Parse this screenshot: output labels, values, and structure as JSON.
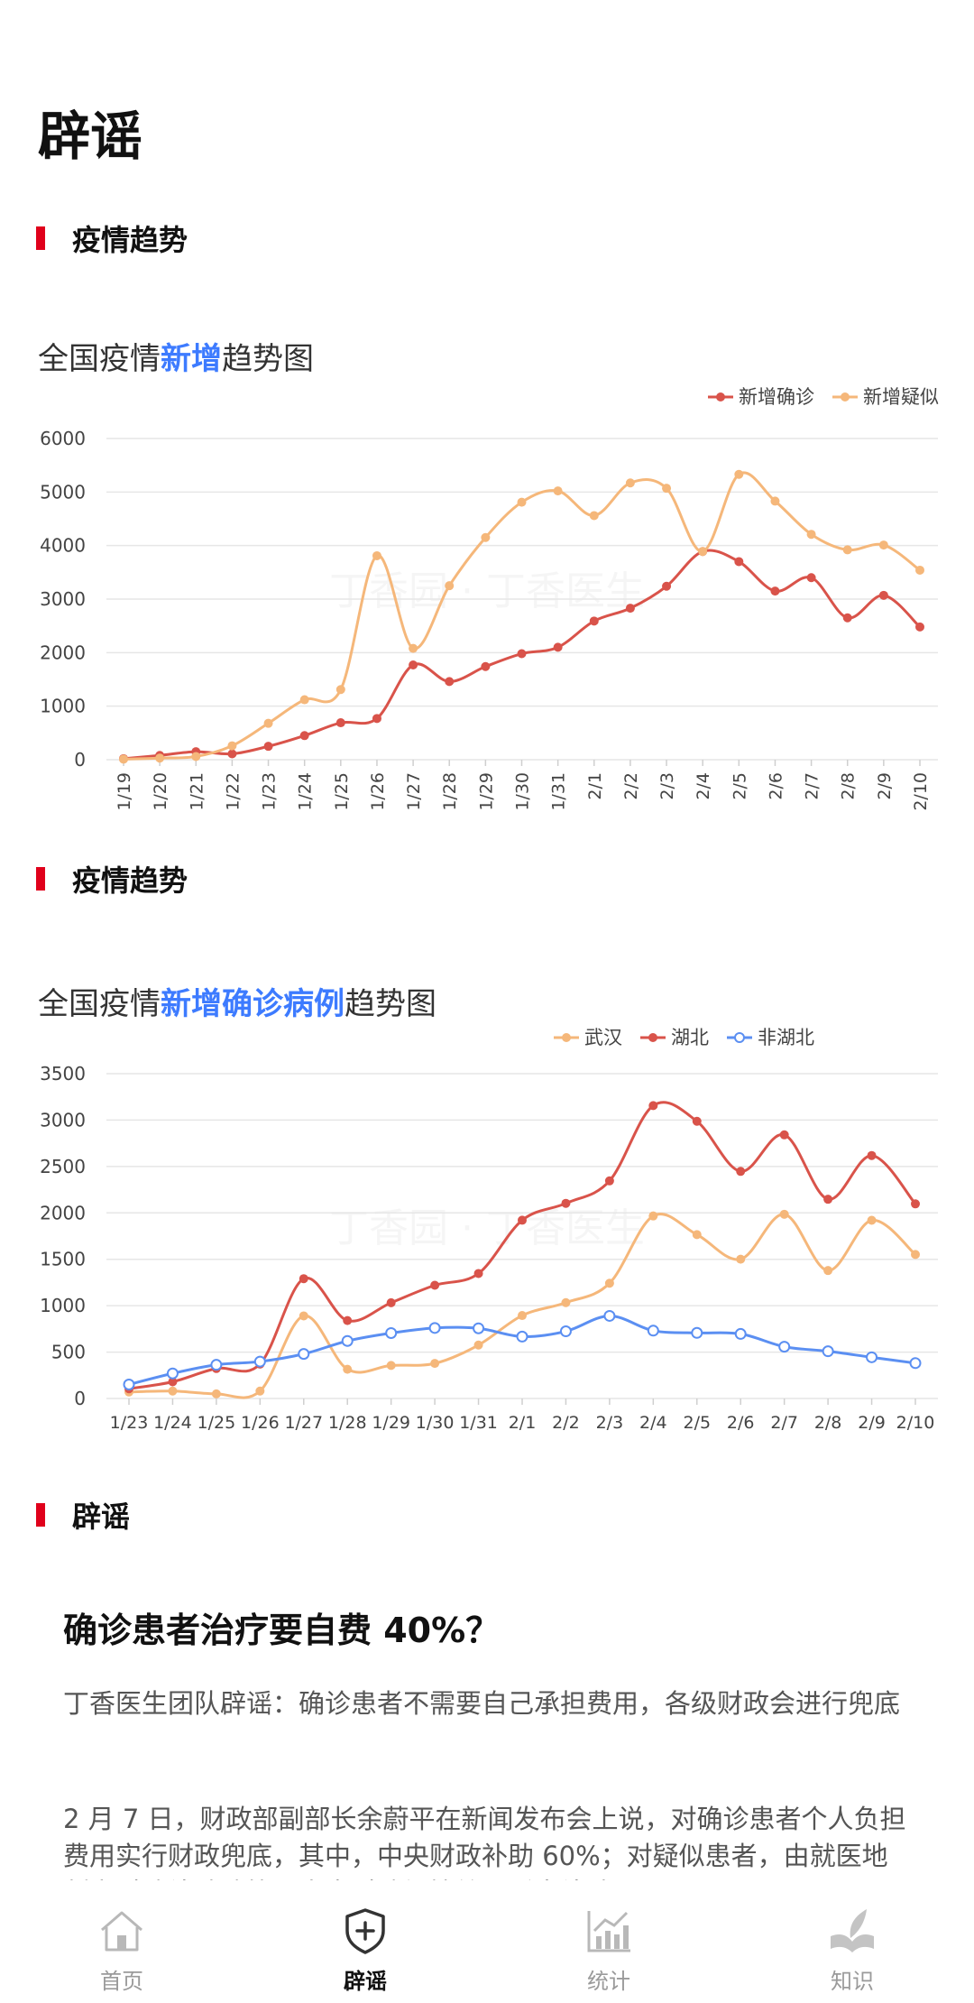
{
  "page": {
    "title": "辟谣"
  },
  "sections": [
    {
      "label": "疫情趋势"
    },
    {
      "label": "疫情趋势"
    },
    {
      "label": "辟谣"
    }
  ],
  "chart1_title": {
    "prefix": "全国疫情",
    "highlight": "新增",
    "suffix": "趋势图"
  },
  "chart2_title": {
    "prefix": "全国疫情",
    "highlight": "新增确诊病例",
    "suffix": "趋势图"
  },
  "watermark": "丁香园 · 丁香医生",
  "chart_data": [
    {
      "type": "line",
      "title": "全国疫情新增趋势图",
      "categories": [
        "1/19",
        "1/20",
        "1/21",
        "1/22",
        "1/23",
        "1/24",
        "1/25",
        "1/26",
        "1/27",
        "1/28",
        "1/29",
        "1/30",
        "1/31",
        "2/1",
        "2/2",
        "2/3",
        "2/4",
        "2/5",
        "2/6",
        "2/7",
        "2/8",
        "2/9",
        "2/10"
      ],
      "ylim": [
        0,
        6000
      ],
      "yticks": [
        0,
        1000,
        2000,
        3000,
        4000,
        5000,
        6000
      ],
      "grid": true,
      "legend_position": "top-right",
      "series": [
        {
          "name": "新增确诊",
          "color": "#d9534a",
          "marker": "filled",
          "values": [
            20,
            80,
            150,
            110,
            250,
            450,
            690,
            770,
            1770,
            1460,
            1740,
            1980,
            2100,
            2590,
            2830,
            3240,
            3890,
            3700,
            3150,
            3400,
            2650,
            3070,
            2480
          ]
        },
        {
          "name": "新增疑似",
          "color": "#f5b77a",
          "marker": "filled",
          "values": [
            10,
            30,
            60,
            260,
            680,
            1120,
            1310,
            3810,
            2080,
            3250,
            4150,
            4810,
            5020,
            4560,
            5170,
            5070,
            3890,
            5330,
            4830,
            4210,
            3920,
            4010,
            3540
          ]
        }
      ]
    },
    {
      "type": "line",
      "title": "全国疫情新增确诊病例趋势图",
      "categories": [
        "1/23",
        "1/24",
        "1/25",
        "1/26",
        "1/27",
        "1/28",
        "1/29",
        "1/30",
        "1/31",
        "2/1",
        "2/2",
        "2/3",
        "2/4",
        "2/5",
        "2/6",
        "2/7",
        "2/8",
        "2/9",
        "2/10"
      ],
      "ylim": [
        0,
        3500
      ],
      "yticks": [
        0,
        500,
        1000,
        1500,
        2000,
        2500,
        3000,
        3500
      ],
      "grid": true,
      "legend_position": "top-right",
      "series": [
        {
          "name": "武汉",
          "color": "#f5b77a",
          "marker": "filled",
          "values": [
            70,
            80,
            50,
            80,
            890,
            315,
            356,
            378,
            576,
            894,
            1033,
            1242,
            1967,
            1766,
            1501,
            1985,
            1379,
            1920,
            1552
          ]
        },
        {
          "name": "湖北",
          "color": "#d9534a",
          "marker": "filled",
          "values": [
            105,
            180,
            323,
            371,
            1291,
            840,
            1032,
            1220,
            1347,
            1921,
            2103,
            2345,
            3156,
            2987,
            2447,
            2841,
            2147,
            2618,
            2097
          ]
        },
        {
          "name": "非湖北",
          "color": "#5b8ff2",
          "marker": "hollow",
          "values": [
            151,
            270,
            363,
            398,
            480,
            620,
            705,
            760,
            756,
            667,
            724,
            890,
            731,
            707,
            696,
            558,
            509,
            444,
            381
          ]
        }
      ]
    }
  ],
  "article": {
    "title": "确诊患者治疗要自费 40%？",
    "summary": "丁香医生团队辟谣：确诊患者不需要自己承担费用，各级财政会进行兜底",
    "body": "2 月 7 日，财政部副部长余蔚平在新闻发布会上说，对确诊患者个人负担费用实行财政兜底，其中，中央财政补助 60%；对疑似患者，由就医地制定财政补助政策，中央财政视情给予适当补助。"
  },
  "tabs": [
    {
      "label": "首页",
      "icon": "home-icon",
      "active": false
    },
    {
      "label": "辟谣",
      "icon": "shield-plus-icon",
      "active": true
    },
    {
      "label": "统计",
      "icon": "bar-chart-icon",
      "active": false
    },
    {
      "label": "知识",
      "icon": "book-feather-icon",
      "active": false
    }
  ]
}
